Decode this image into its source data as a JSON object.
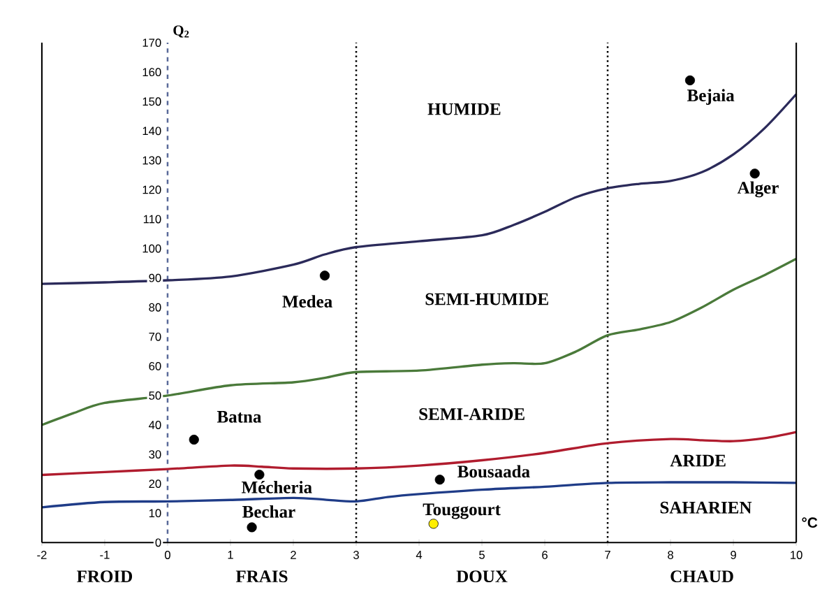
{
  "chart_data": {
    "type": "line",
    "ylabel": "Q$_{2}$",
    "xlabel": "°C",
    "xlim": [
      -2,
      10
    ],
    "ylim": [
      0,
      170
    ],
    "xticks": [
      -2,
      -1,
      0,
      1,
      2,
      3,
      4,
      5,
      6,
      7,
      8,
      9,
      10
    ],
    "yticks": [
      0,
      10,
      20,
      30,
      40,
      50,
      60,
      70,
      80,
      90,
      100,
      110,
      120,
      130,
      140,
      150,
      160,
      170
    ],
    "grid": false,
    "series": [
      {
        "color": "#2b2a5a",
        "x": [
          -2,
          -1,
          0,
          1,
          2,
          2.5,
          3,
          4,
          5,
          5.5,
          6,
          6.5,
          7,
          7.5,
          8,
          8.5,
          9,
          9.5,
          10
        ],
        "values": [
          88,
          88.5,
          89.2,
          90.5,
          94.5,
          98,
          100.5,
          102.5,
          104.5,
          108,
          112.5,
          117.5,
          120.5,
          122,
          123,
          126,
          132,
          141,
          152.5
        ]
      },
      {
        "color": "#4a7a3a",
        "x": [
          -2,
          -1.5,
          -1,
          0,
          1,
          2,
          2.5,
          3,
          4,
          5,
          5.5,
          6,
          6.5,
          7,
          7.5,
          8,
          8.5,
          9,
          9.5,
          10
        ],
        "values": [
          40,
          44,
          47.5,
          50,
          53.5,
          54.5,
          56,
          58,
          58.5,
          60.5,
          61,
          61,
          65,
          70.5,
          72.5,
          75,
          80,
          86,
          91,
          96.5
        ]
      },
      {
        "color": "#b01c2e",
        "x": [
          -2,
          -1,
          0,
          1,
          1.5,
          2,
          3,
          4,
          5,
          6,
          7,
          8,
          8.5,
          9,
          9.5,
          10
        ],
        "values": [
          23,
          24,
          25,
          26.2,
          25.8,
          25.2,
          25.2,
          26.2,
          28,
          30.5,
          33.8,
          35.2,
          34.8,
          34.5,
          35.5,
          37.6
        ]
      },
      {
        "color": "#1f3c88",
        "x": [
          -2,
          -1,
          0,
          1,
          2,
          2.5,
          3,
          3.5,
          4,
          5,
          6,
          7,
          8,
          9,
          10
        ],
        "values": [
          12,
          13.8,
          14,
          14.5,
          15.2,
          14.6,
          14,
          15.5,
          16.5,
          18,
          19,
          20.3,
          20.5,
          20.5,
          20.3
        ]
      },
      {
        "type": "scatter",
        "marker": "circle",
        "x": [
          8.31,
          9.34,
          2.5,
          0.42,
          1.46,
          1.34,
          4.33,
          4.23
        ],
        "values": [
          157.2,
          125.5,
          90.8,
          35,
          23.1,
          5.2,
          21.4,
          6.4
        ],
        "colors": [
          "#000000",
          "#000000",
          "#000000",
          "#000000",
          "#000000",
          "#000000",
          "#000000",
          "#ffee00"
        ]
      }
    ],
    "ref_lines": [
      {
        "axis": "x",
        "value": 0,
        "color": "#5a6a9a",
        "line_style": "dashed"
      },
      {
        "axis": "x",
        "value": 3,
        "color": "#000000",
        "line_style": "dotted"
      },
      {
        "axis": "x",
        "value": 7,
        "color": "#000000",
        "line_style": "dotted"
      }
    ],
    "annotations": [
      "HUMIDE",
      "SEMI-HUMIDE",
      "SEMI-ARIDE",
      "ARIDE",
      "SAHARIEN",
      {
        "text": "Bejaia",
        "x": 8.31,
        "y": 157.2
      },
      {
        "text": "Alger",
        "x": 9.34,
        "y": 125.5
      },
      {
        "text": "Medea",
        "x": 2.5,
        "y": 90.8
      },
      {
        "text": "Batna",
        "x": 0.42,
        "y": 35
      },
      {
        "text": "Mécheria",
        "x": 1.46,
        "y": 23.1
      },
      {
        "text": "Bechar",
        "x": 1.34,
        "y": 5.2
      },
      {
        "text": "Bousaada",
        "x": 4.33,
        "y": 21.4
      },
      {
        "text": "Touggourt",
        "x": 4.23,
        "y": 6.4
      },
      "FROID",
      "FRAIS",
      "DOUX",
      "CHAUD"
    ]
  }
}
